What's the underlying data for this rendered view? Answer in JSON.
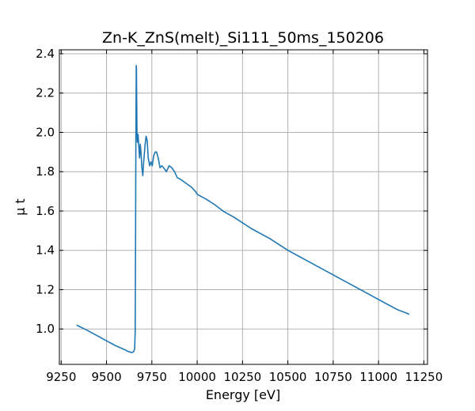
{
  "chart_data": {
    "type": "line",
    "title": "Zn-K_ZnS(melt)_Si111_50ms_150206",
    "xlabel": "Energy [eV]",
    "ylabel": "μ t",
    "xlim": [
      9240,
      11270
    ],
    "ylim": [
      0.82,
      2.42
    ],
    "xticks": [
      9250,
      9500,
      9750,
      10000,
      10250,
      10500,
      10750,
      11000,
      11250
    ],
    "yticks": [
      1.0,
      1.2,
      1.4,
      1.6,
      1.8,
      2.0,
      2.2,
      2.4
    ],
    "xtick_labels": [
      "9250",
      "9500",
      "9750",
      "10000",
      "10250",
      "10500",
      "10750",
      "11000",
      "11250"
    ],
    "ytick_labels": [
      "1.0",
      "1.2",
      "1.4",
      "1.6",
      "1.8",
      "2.0",
      "2.2",
      "2.4"
    ],
    "grid": true,
    "series": [
      {
        "color": "#1f77b4",
        "x": [
          9335,
          9400,
          9450,
          9500,
          9550,
          9600,
          9620,
          9640,
          9650,
          9655,
          9658,
          9660,
          9662,
          9664,
          9665,
          9666,
          9668,
          9670,
          9674,
          9678,
          9682,
          9686,
          9690,
          9695,
          9700,
          9705,
          9712,
          9718,
          9724,
          9730,
          9738,
          9745,
          9752,
          9760,
          9768,
          9776,
          9785,
          9795,
          9805,
          9815,
          9830,
          9845,
          9860,
          9875,
          9890,
          9910,
          9940,
          9970,
          9990,
          10000,
          10010,
          10050,
          10100,
          10150,
          10200,
          10250,
          10300,
          10400,
          10500,
          10600,
          10700,
          10800,
          10900,
          11000,
          11100,
          11170
        ],
        "y": [
          1.02,
          0.99,
          0.965,
          0.94,
          0.915,
          0.895,
          0.885,
          0.88,
          0.885,
          0.9,
          0.98,
          1.4,
          2.0,
          2.34,
          2.33,
          2.2,
          2.0,
          1.95,
          1.99,
          1.93,
          1.87,
          1.94,
          1.9,
          1.82,
          1.78,
          1.85,
          1.93,
          1.98,
          1.96,
          1.87,
          1.83,
          1.85,
          1.83,
          1.88,
          1.9,
          1.9,
          1.87,
          1.82,
          1.83,
          1.82,
          1.8,
          1.83,
          1.82,
          1.8,
          1.77,
          1.76,
          1.74,
          1.72,
          1.7,
          1.685,
          1.68,
          1.66,
          1.63,
          1.595,
          1.57,
          1.54,
          1.51,
          1.46,
          1.4,
          1.35,
          1.3,
          1.25,
          1.2,
          1.15,
          1.1,
          1.075
        ]
      }
    ]
  }
}
